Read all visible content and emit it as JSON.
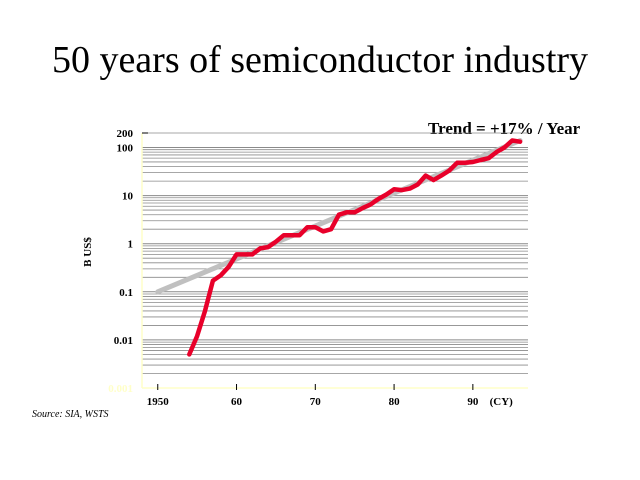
{
  "title": "50 years of semiconductor industry",
  "annotation": "Trend = +17% / Year",
  "source": "Source: SIA, WSTS",
  "chart_data": {
    "type": "line",
    "title": "50 years of semiconductor industry",
    "ylabel": "B US$",
    "xlabel": "(CY)",
    "yscale": "log",
    "xlim": [
      1948,
      1997
    ],
    "ylim": [
      0.001,
      200
    ],
    "x_ticks": [
      {
        "value": 1950,
        "label": "1950"
      },
      {
        "value": 1960,
        "label": "60"
      },
      {
        "value": 1970,
        "label": "70"
      },
      {
        "value": 1980,
        "label": "80"
      },
      {
        "value": 1990,
        "label": "90"
      }
    ],
    "x_unit_label": "(CY)",
    "y_ticks": [
      {
        "value": 200,
        "label": "200"
      },
      {
        "value": 100,
        "label": "100"
      },
      {
        "value": 10,
        "label": "10"
      },
      {
        "value": 1,
        "label": "1"
      },
      {
        "value": 0.1,
        "label": "0.1"
      },
      {
        "value": 0.01,
        "label": "0.01"
      },
      {
        "value": 0.001,
        "label": "0.001"
      }
    ],
    "grid": true,
    "series": [
      {
        "name": "Trend = +17% / Year",
        "color": "#c0c0c0",
        "x": [
          1950,
          1996
        ],
        "y": [
          0.1,
          140
        ]
      },
      {
        "color": "#e8002a",
        "x": [
          1954,
          1955,
          1956,
          1957,
          1958,
          1959,
          1960,
          1961,
          1962,
          1963,
          1964,
          1965,
          1966,
          1967,
          1968,
          1969,
          1970,
          1971,
          1972,
          1973,
          1974,
          1975,
          1976,
          1977,
          1978,
          1979,
          1980,
          1981,
          1982,
          1983,
          1984,
          1985,
          1986,
          1987,
          1988,
          1989,
          1990,
          1991,
          1992,
          1993,
          1994,
          1995,
          1996
        ],
        "y": [
          0.005,
          0.012,
          0.04,
          0.17,
          0.22,
          0.33,
          0.6,
          0.6,
          0.6,
          0.8,
          0.85,
          1.1,
          1.5,
          1.5,
          1.5,
          2.2,
          2.2,
          1.8,
          2.0,
          4.0,
          4.5,
          4.5,
          5.5,
          6.5,
          8.5,
          10.5,
          13.5,
          13.0,
          14.0,
          17.0,
          26.0,
          21.0,
          26.0,
          33.0,
          48.0,
          48.0,
          50.0,
          55.0,
          60.0,
          80.0,
          100.0,
          140.0,
          132.0
        ]
      }
    ]
  }
}
